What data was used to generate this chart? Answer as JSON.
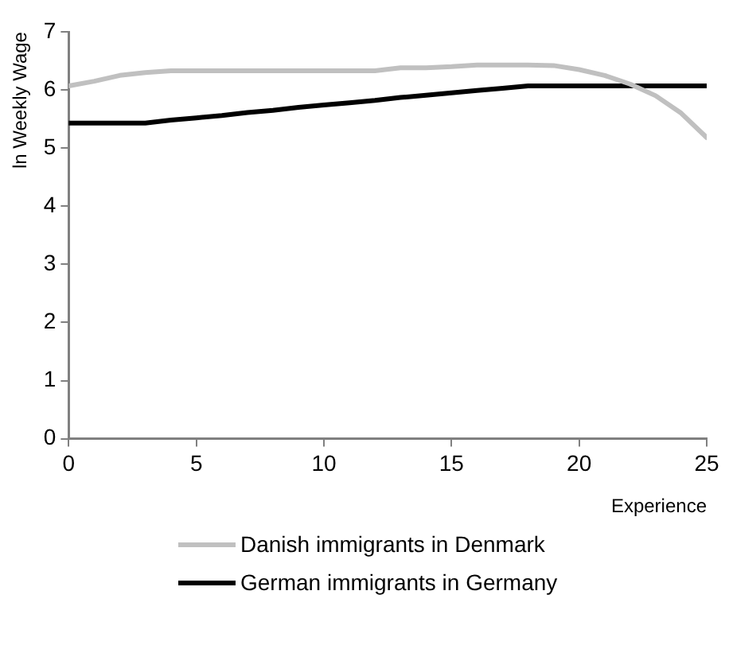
{
  "chart_data": {
    "type": "line",
    "xlabel": "Experience",
    "ylabel": "ln Weekly Wage",
    "xlim": [
      0,
      25
    ],
    "xticks": [
      0,
      5,
      10,
      15,
      20,
      25
    ],
    "ylim": [
      0,
      7
    ],
    "yticks": [
      0,
      1,
      2,
      3,
      4,
      5,
      6,
      7
    ],
    "grid": false,
    "legend": "bottom",
    "marker": "none",
    "line_style": "solid",
    "x": [
      0,
      1,
      2,
      3,
      4,
      5,
      6,
      7,
      8,
      9,
      10,
      11,
      12,
      13,
      14,
      15,
      16,
      17,
      18,
      19,
      20,
      21,
      22,
      23,
      24,
      25
    ],
    "series": [
      {
        "name": "Danish immigrants in Denmark",
        "color": "#c0c0c0",
        "values": [
          6.07,
          6.15,
          6.25,
          6.3,
          6.33,
          6.33,
          6.33,
          6.33,
          6.33,
          6.33,
          6.33,
          6.33,
          6.33,
          6.38,
          6.38,
          6.4,
          6.43,
          6.43,
          6.43,
          6.42,
          6.35,
          6.25,
          6.1,
          5.9,
          5.6,
          5.18
        ]
      },
      {
        "name": "German immigrants in Germany",
        "color": "#000000",
        "values": [
          5.43,
          5.43,
          5.43,
          5.43,
          5.48,
          5.52,
          5.56,
          5.61,
          5.65,
          5.7,
          5.74,
          5.78,
          5.82,
          5.87,
          5.91,
          5.95,
          5.99,
          6.03,
          6.07,
          6.07,
          6.07,
          6.07,
          6.07,
          6.07,
          6.07,
          6.07
        ]
      }
    ]
  }
}
